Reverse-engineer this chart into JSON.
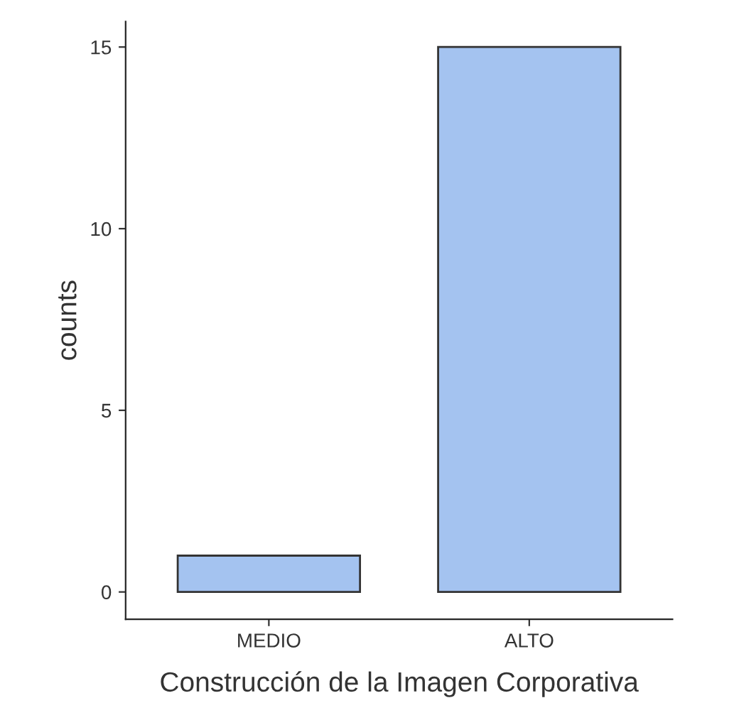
{
  "chart_data": {
    "type": "bar",
    "xlabel": "Construcción de la Imagen Corporativa",
    "ylabel": "counts",
    "categories": [
      "MEDIO",
      "ALTO"
    ],
    "values": [
      1,
      15
    ],
    "color": "#a4c3f0",
    "ylim": [
      -0.75,
      15.7
    ],
    "yticks": [
      0,
      5,
      10,
      15
    ],
    "grid": false
  }
}
